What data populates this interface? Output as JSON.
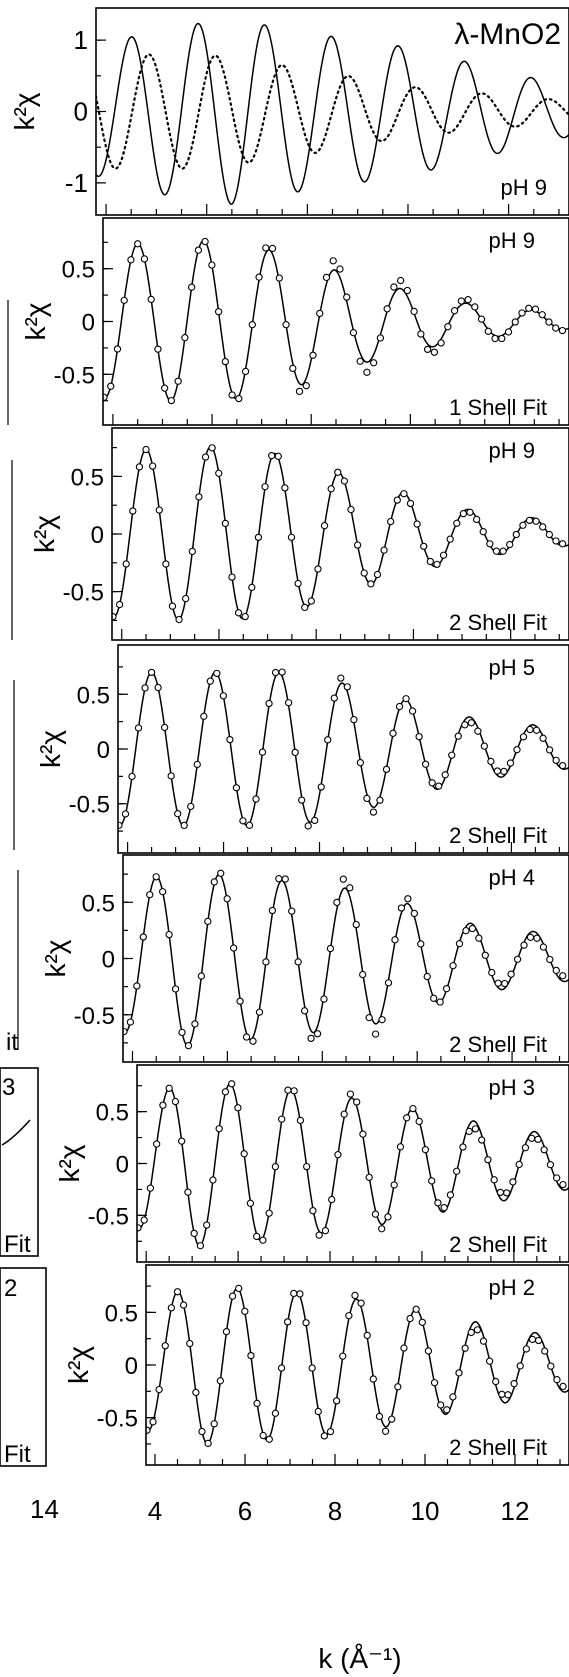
{
  "chart_data": [
    {
      "type": "line",
      "panel_id": "a",
      "title": "λ-MnO2",
      "label_pH": "pH 9",
      "label_fit": "",
      "ylabel": "k²χ",
      "xlim": [
        3.8,
        13.2
      ],
      "ylim": [
        -1.45,
        1.45
      ],
      "yticks": [
        1,
        0,
        -1
      ],
      "ytick_labels": [
        "1",
        "0",
        "-1"
      ],
      "series": [
        {
          "style": "solid",
          "amp": [
            [
              3.8,
              0.9
            ],
            [
              5,
              1.15
            ],
            [
              6.5,
              1.3
            ],
            [
              8,
              1.1
            ],
            [
              10,
              0.9
            ],
            [
              12,
              0.55
            ],
            [
              13.2,
              0.35
            ]
          ],
          "freq": 4.74,
          "phase": 5.37
        },
        {
          "style": "dotted",
          "amp": [
            [
              3.8,
              0.8
            ],
            [
              6,
              0.8
            ],
            [
              8,
              0.6
            ],
            [
              10,
              0.35
            ],
            [
              12,
              0.22
            ],
            [
              13.2,
              0.15
            ]
          ],
          "freq": 4.74,
          "phase": 3.71
        }
      ]
    },
    {
      "type": "line",
      "panel_id": "b",
      "label_pH": "pH 9",
      "label_fit": "1 Shell Fit",
      "ylabel": "k²χ",
      "xlim": [
        3.8,
        13.2
      ],
      "ylim": [
        -0.98,
        0.98
      ],
      "yticks": [
        0.5,
        0,
        -0.5
      ],
      "ytick_labels": [
        "0.5",
        "0",
        "-0.5"
      ],
      "series": [
        {
          "style": "solid",
          "amp": [
            [
              3.8,
              0.72
            ],
            [
              6,
              0.77
            ],
            [
              7.5,
              0.65
            ],
            [
              9,
              0.4
            ],
            [
              11,
              0.18
            ],
            [
              13.2,
              0.07
            ]
          ],
          "freq": 4.74,
          "phase": 5.37
        },
        {
          "style": "points",
          "amp": [
            [
              3.8,
              0.72
            ],
            [
              6,
              0.77
            ],
            [
              7.5,
              0.72
            ],
            [
              9,
              0.5
            ],
            [
              11,
              0.22
            ],
            [
              13.2,
              0.08
            ]
          ],
          "freq": 4.74,
          "phase": 5.37
        }
      ]
    },
    {
      "type": "line",
      "panel_id": "c",
      "label_pH": "pH 9",
      "label_fit": "2 Shell Fit",
      "ylabel": "k²χ",
      "xlim": [
        3.8,
        13.2
      ],
      "ylim": [
        -0.92,
        0.92
      ],
      "yticks": [
        0.5,
        0,
        -0.5
      ],
      "ytick_labels": [
        "0.5",
        "0",
        "-0.5"
      ],
      "series": [
        {
          "style": "solid",
          "amp": [
            [
              3.8,
              0.72
            ],
            [
              6,
              0.76
            ],
            [
              7.5,
              0.68
            ],
            [
              9,
              0.45
            ],
            [
              11,
              0.22
            ],
            [
              13.2,
              0.1
            ]
          ],
          "freq": 4.74,
          "phase": 5.37
        },
        {
          "style": "points",
          "amp": [
            [
              3.8,
              0.72
            ],
            [
              6,
              0.76
            ],
            [
              7.5,
              0.7
            ],
            [
              9,
              0.45
            ],
            [
              11,
              0.2
            ],
            [
              13.2,
              0.08
            ]
          ],
          "freq": 4.74,
          "phase": 5.37
        }
      ]
    },
    {
      "type": "line",
      "panel_id": "d",
      "label_pH": "pH 5",
      "label_fit": "2 Shell Fit",
      "ylabel": "k²χ",
      "xlim": [
        3.8,
        13.2
      ],
      "ylim": [
        -0.95,
        0.95
      ],
      "yticks": [
        0.5,
        0,
        -0.5
      ],
      "ytick_labels": [
        "0.5",
        "0",
        "-0.5"
      ],
      "series": [
        {
          "style": "solid",
          "amp": [
            [
              3.8,
              0.7
            ],
            [
              6,
              0.7
            ],
            [
              7.5,
              0.7
            ],
            [
              9,
              0.55
            ],
            [
              11,
              0.3
            ],
            [
              13.2,
              0.18
            ]
          ],
          "freq": 4.74,
          "phase": 5.37
        },
        {
          "style": "points",
          "amp": [
            [
              3.8,
              0.7
            ],
            [
              6,
              0.7
            ],
            [
              7.5,
              0.75
            ],
            [
              9,
              0.6
            ],
            [
              11,
              0.25
            ],
            [
              13.2,
              0.15
            ]
          ],
          "freq": 4.74,
          "phase": 5.37
        }
      ]
    },
    {
      "type": "line",
      "panel_id": "e",
      "label_pH": "pH 4",
      "label_fit": "2 Shell Fit",
      "ylabel": "k²χ",
      "xlim": [
        3.8,
        13.2
      ],
      "ylim": [
        -0.92,
        0.92
      ],
      "yticks": [
        0.5,
        0,
        -0.5
      ],
      "ytick_labels": [
        "0.5",
        "0",
        "-0.5"
      ],
      "series": [
        {
          "style": "solid",
          "amp": [
            [
              3.8,
              0.65
            ],
            [
              5,
              0.78
            ],
            [
              7,
              0.7
            ],
            [
              9,
              0.6
            ],
            [
              11,
              0.32
            ],
            [
              13.2,
              0.2
            ]
          ],
          "freq": 4.74,
          "phase": 5.37
        },
        {
          "style": "points",
          "amp": [
            [
              3.8,
              0.65
            ],
            [
              5,
              0.78
            ],
            [
              7,
              0.75
            ],
            [
              9,
              0.7
            ],
            [
              11,
              0.28
            ],
            [
              13.2,
              0.15
            ]
          ],
          "freq": 4.74,
          "phase": 5.37
        }
      ]
    },
    {
      "type": "line",
      "panel_id": "f",
      "label_pH": "pH 3",
      "label_fit": "2 Shell Fit",
      "ylabel": "k²χ",
      "xlim": [
        3.8,
        13.2
      ],
      "ylim": [
        -0.95,
        0.95
      ],
      "yticks": [
        0.5,
        0,
        -0.5
      ],
      "ytick_labels": [
        "0.5",
        "0",
        "-0.5"
      ],
      "series": [
        {
          "style": "solid",
          "amp": [
            [
              3.8,
              0.62
            ],
            [
              5,
              0.8
            ],
            [
              7,
              0.72
            ],
            [
              9,
              0.6
            ],
            [
              11,
              0.42
            ],
            [
              13.2,
              0.25
            ]
          ],
          "freq": 4.74,
          "phase": 5.37
        },
        {
          "style": "points",
          "amp": [
            [
              3.8,
              0.62
            ],
            [
              5,
              0.8
            ],
            [
              7,
              0.75
            ],
            [
              9,
              0.65
            ],
            [
              11,
              0.35
            ],
            [
              13.2,
              0.2
            ]
          ],
          "freq": 4.74,
          "phase": 5.37
        }
      ]
    },
    {
      "type": "line",
      "panel_id": "g",
      "label_pH": "pH 2",
      "label_fit": "2 Shell Fit",
      "ylabel": "k²χ",
      "xlim": [
        3.8,
        13.2
      ],
      "ylim": [
        -0.95,
        0.95
      ],
      "yticks": [
        0.5,
        0,
        -0.5
      ],
      "ytick_labels": [
        "0.5",
        "0",
        "-0.5"
      ],
      "series": [
        {
          "style": "solid",
          "amp": [
            [
              3.8,
              0.62
            ],
            [
              5,
              0.75
            ],
            [
              7,
              0.7
            ],
            [
              9,
              0.6
            ],
            [
              11,
              0.42
            ],
            [
              13.2,
              0.25
            ]
          ],
          "freq": 4.74,
          "phase": 5.37
        },
        {
          "style": "points",
          "amp": [
            [
              3.8,
              0.62
            ],
            [
              5,
              0.75
            ],
            [
              7,
              0.72
            ],
            [
              9,
              0.65
            ],
            [
              11,
              0.35
            ],
            [
              13.2,
              0.2
            ]
          ],
          "freq": 4.74,
          "phase": 5.37
        }
      ]
    }
  ],
  "x_axis": {
    "label": "k (Å⁻¹)",
    "ticks": [
      4,
      6,
      8,
      10,
      12
    ],
    "tick_labels": [
      "4",
      "6",
      "8",
      "10",
      "12"
    ]
  },
  "left_fragment": {
    "labels": [
      "3",
      "2"
    ],
    "fit_labels": [
      "it",
      "Fit",
      "Fit"
    ],
    "axis_ticks": [
      14
    ],
    "axis_tick_labels": [
      "14"
    ]
  }
}
